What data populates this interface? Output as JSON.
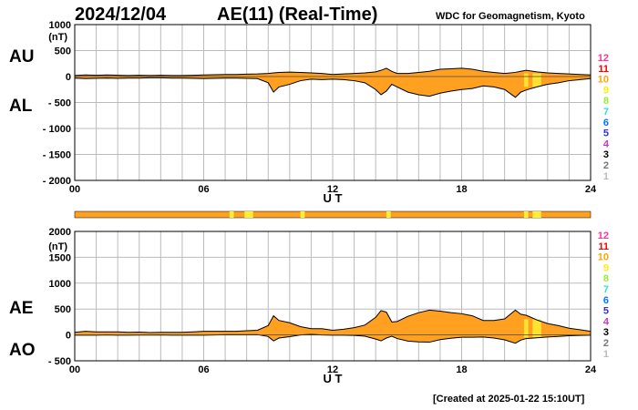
{
  "header": {
    "date": "2024/12/04",
    "title": "AE(11) (Real-Time)",
    "source": "WDC for Geomagnetism, Kyoto"
  },
  "footer": {
    "created": "[Created at 2025-01-22 15:10UT]"
  },
  "legend": {
    "entries": [
      {
        "label": "12",
        "color": "#ff3399"
      },
      {
        "label": "11",
        "color": "#ff0000"
      },
      {
        "label": "10",
        "color": "#ffa500"
      },
      {
        "label": "9",
        "color": "#ffee00"
      },
      {
        "label": "8",
        "color": "#99ee33"
      },
      {
        "label": "7",
        "color": "#33dddd"
      },
      {
        "label": "6",
        "color": "#0077ff"
      },
      {
        "label": "5",
        "color": "#3333cc"
      },
      {
        "label": "4",
        "color": "#cc33cc"
      },
      {
        "label": "3",
        "color": "#000000"
      },
      {
        "label": "2",
        "color": "#777777"
      },
      {
        "label": "1",
        "color": "#bbbbbb"
      }
    ]
  },
  "colors": {
    "fill": "#ffa020",
    "highlight": "#ffee33",
    "line": "#000000",
    "grid": "#bbbbbb"
  },
  "chart_data": [
    {
      "type": "area",
      "series_labels": [
        "AU",
        "AL"
      ],
      "ylabel": "(nT)",
      "xlabel": "U T",
      "xlim": [
        0,
        24
      ],
      "ylim": [
        -2000,
        1000
      ],
      "xticks": [
        "00",
        "06",
        "12",
        "18",
        "24"
      ],
      "yticks": [
        "1000",
        "500",
        "0",
        "- 500",
        "- 1000",
        "- 1500",
        "- 2000"
      ],
      "x": [
        0,
        0.5,
        1,
        1.5,
        2,
        2.5,
        3,
        3.5,
        4,
        4.5,
        5,
        5.5,
        6,
        6.5,
        7,
        7.5,
        8,
        8.5,
        9,
        9.25,
        9.5,
        10,
        10.5,
        11,
        11.5,
        12,
        12.5,
        13,
        13.5,
        14,
        14.25,
        14.5,
        14.75,
        15,
        15.5,
        16,
        16.5,
        17,
        17.5,
        18,
        18.5,
        19,
        19.5,
        20,
        20.5,
        20.75,
        21,
        21.5,
        22,
        22.5,
        23,
        23.5,
        24
      ],
      "upper": [
        20,
        30,
        25,
        30,
        25,
        20,
        25,
        20,
        25,
        20,
        20,
        25,
        30,
        35,
        40,
        40,
        45,
        50,
        60,
        70,
        80,
        85,
        80,
        70,
        60,
        40,
        50,
        60,
        70,
        90,
        120,
        160,
        100,
        60,
        60,
        80,
        100,
        140,
        150,
        160,
        140,
        100,
        80,
        60,
        80,
        100,
        120,
        90,
        70,
        60,
        50,
        40,
        30
      ],
      "lower": [
        -30,
        -40,
        -35,
        -30,
        -35,
        -30,
        -30,
        -25,
        -25,
        -30,
        -30,
        -35,
        -40,
        -35,
        -30,
        -30,
        -35,
        -40,
        -120,
        -300,
        -200,
        -150,
        -80,
        -50,
        -60,
        -50,
        -60,
        -80,
        -120,
        -250,
        -350,
        -280,
        -150,
        -200,
        -300,
        -350,
        -380,
        -320,
        -280,
        -250,
        -230,
        -180,
        -200,
        -250,
        -400,
        -300,
        -260,
        -200,
        -150,
        -120,
        -80,
        -60,
        -40
      ]
    },
    {
      "type": "area",
      "series_labels": [
        "AE",
        "AO"
      ],
      "ylabel": "(nT)",
      "xlabel": "U T",
      "xlim": [
        0,
        24
      ],
      "ylim": [
        -500,
        2000
      ],
      "xticks": [
        "00",
        "06",
        "12",
        "18",
        "24"
      ],
      "yticks": [
        "2000",
        "1500",
        "1000",
        "500",
        "0",
        "- 500"
      ],
      "x": [
        0,
        0.5,
        1,
        1.5,
        2,
        2.5,
        3,
        3.5,
        4,
        4.5,
        5,
        5.5,
        6,
        6.5,
        7,
        7.5,
        8,
        8.5,
        9,
        9.25,
        9.5,
        10,
        10.5,
        11,
        11.5,
        12,
        12.5,
        13,
        13.5,
        14,
        14.25,
        14.5,
        14.75,
        15,
        15.5,
        16,
        16.5,
        17,
        17.5,
        18,
        18.5,
        19,
        19.5,
        20,
        20.5,
        20.75,
        21,
        21.5,
        22,
        22.5,
        23,
        23.5,
        24
      ],
      "upper": [
        50,
        70,
        60,
        60,
        60,
        50,
        55,
        45,
        50,
        50,
        50,
        60,
        70,
        70,
        70,
        70,
        80,
        90,
        180,
        370,
        280,
        235,
        160,
        120,
        120,
        90,
        110,
        140,
        190,
        340,
        470,
        440,
        250,
        260,
        360,
        430,
        480,
        460,
        430,
        410,
        370,
        280,
        280,
        310,
        480,
        400,
        380,
        290,
        220,
        180,
        130,
        100,
        70
      ],
      "lower": [
        -5,
        -5,
        -5,
        0,
        -5,
        -5,
        -3,
        -3,
        0,
        -5,
        -5,
        -5,
        -5,
        0,
        5,
        5,
        5,
        5,
        -30,
        -115,
        -60,
        -33,
        0,
        10,
        0,
        -5,
        -5,
        -10,
        -25,
        -80,
        -115,
        -60,
        -25,
        -70,
        -120,
        -135,
        -140,
        -90,
        -65,
        -45,
        -45,
        -40,
        -60,
        -95,
        -160,
        -100,
        -70,
        -55,
        -40,
        -30,
        -15,
        -10,
        -5
      ]
    }
  ],
  "status_bar": {
    "base_color": "#ffa020",
    "highlight_color": "#ffee33",
    "highlights": [
      [
        7.2,
        7.4
      ],
      [
        7.9,
        8.3
      ],
      [
        10.5,
        10.7
      ],
      [
        14.5,
        14.7
      ],
      [
        20.9,
        21.1
      ],
      [
        21.3,
        21.7
      ]
    ]
  }
}
